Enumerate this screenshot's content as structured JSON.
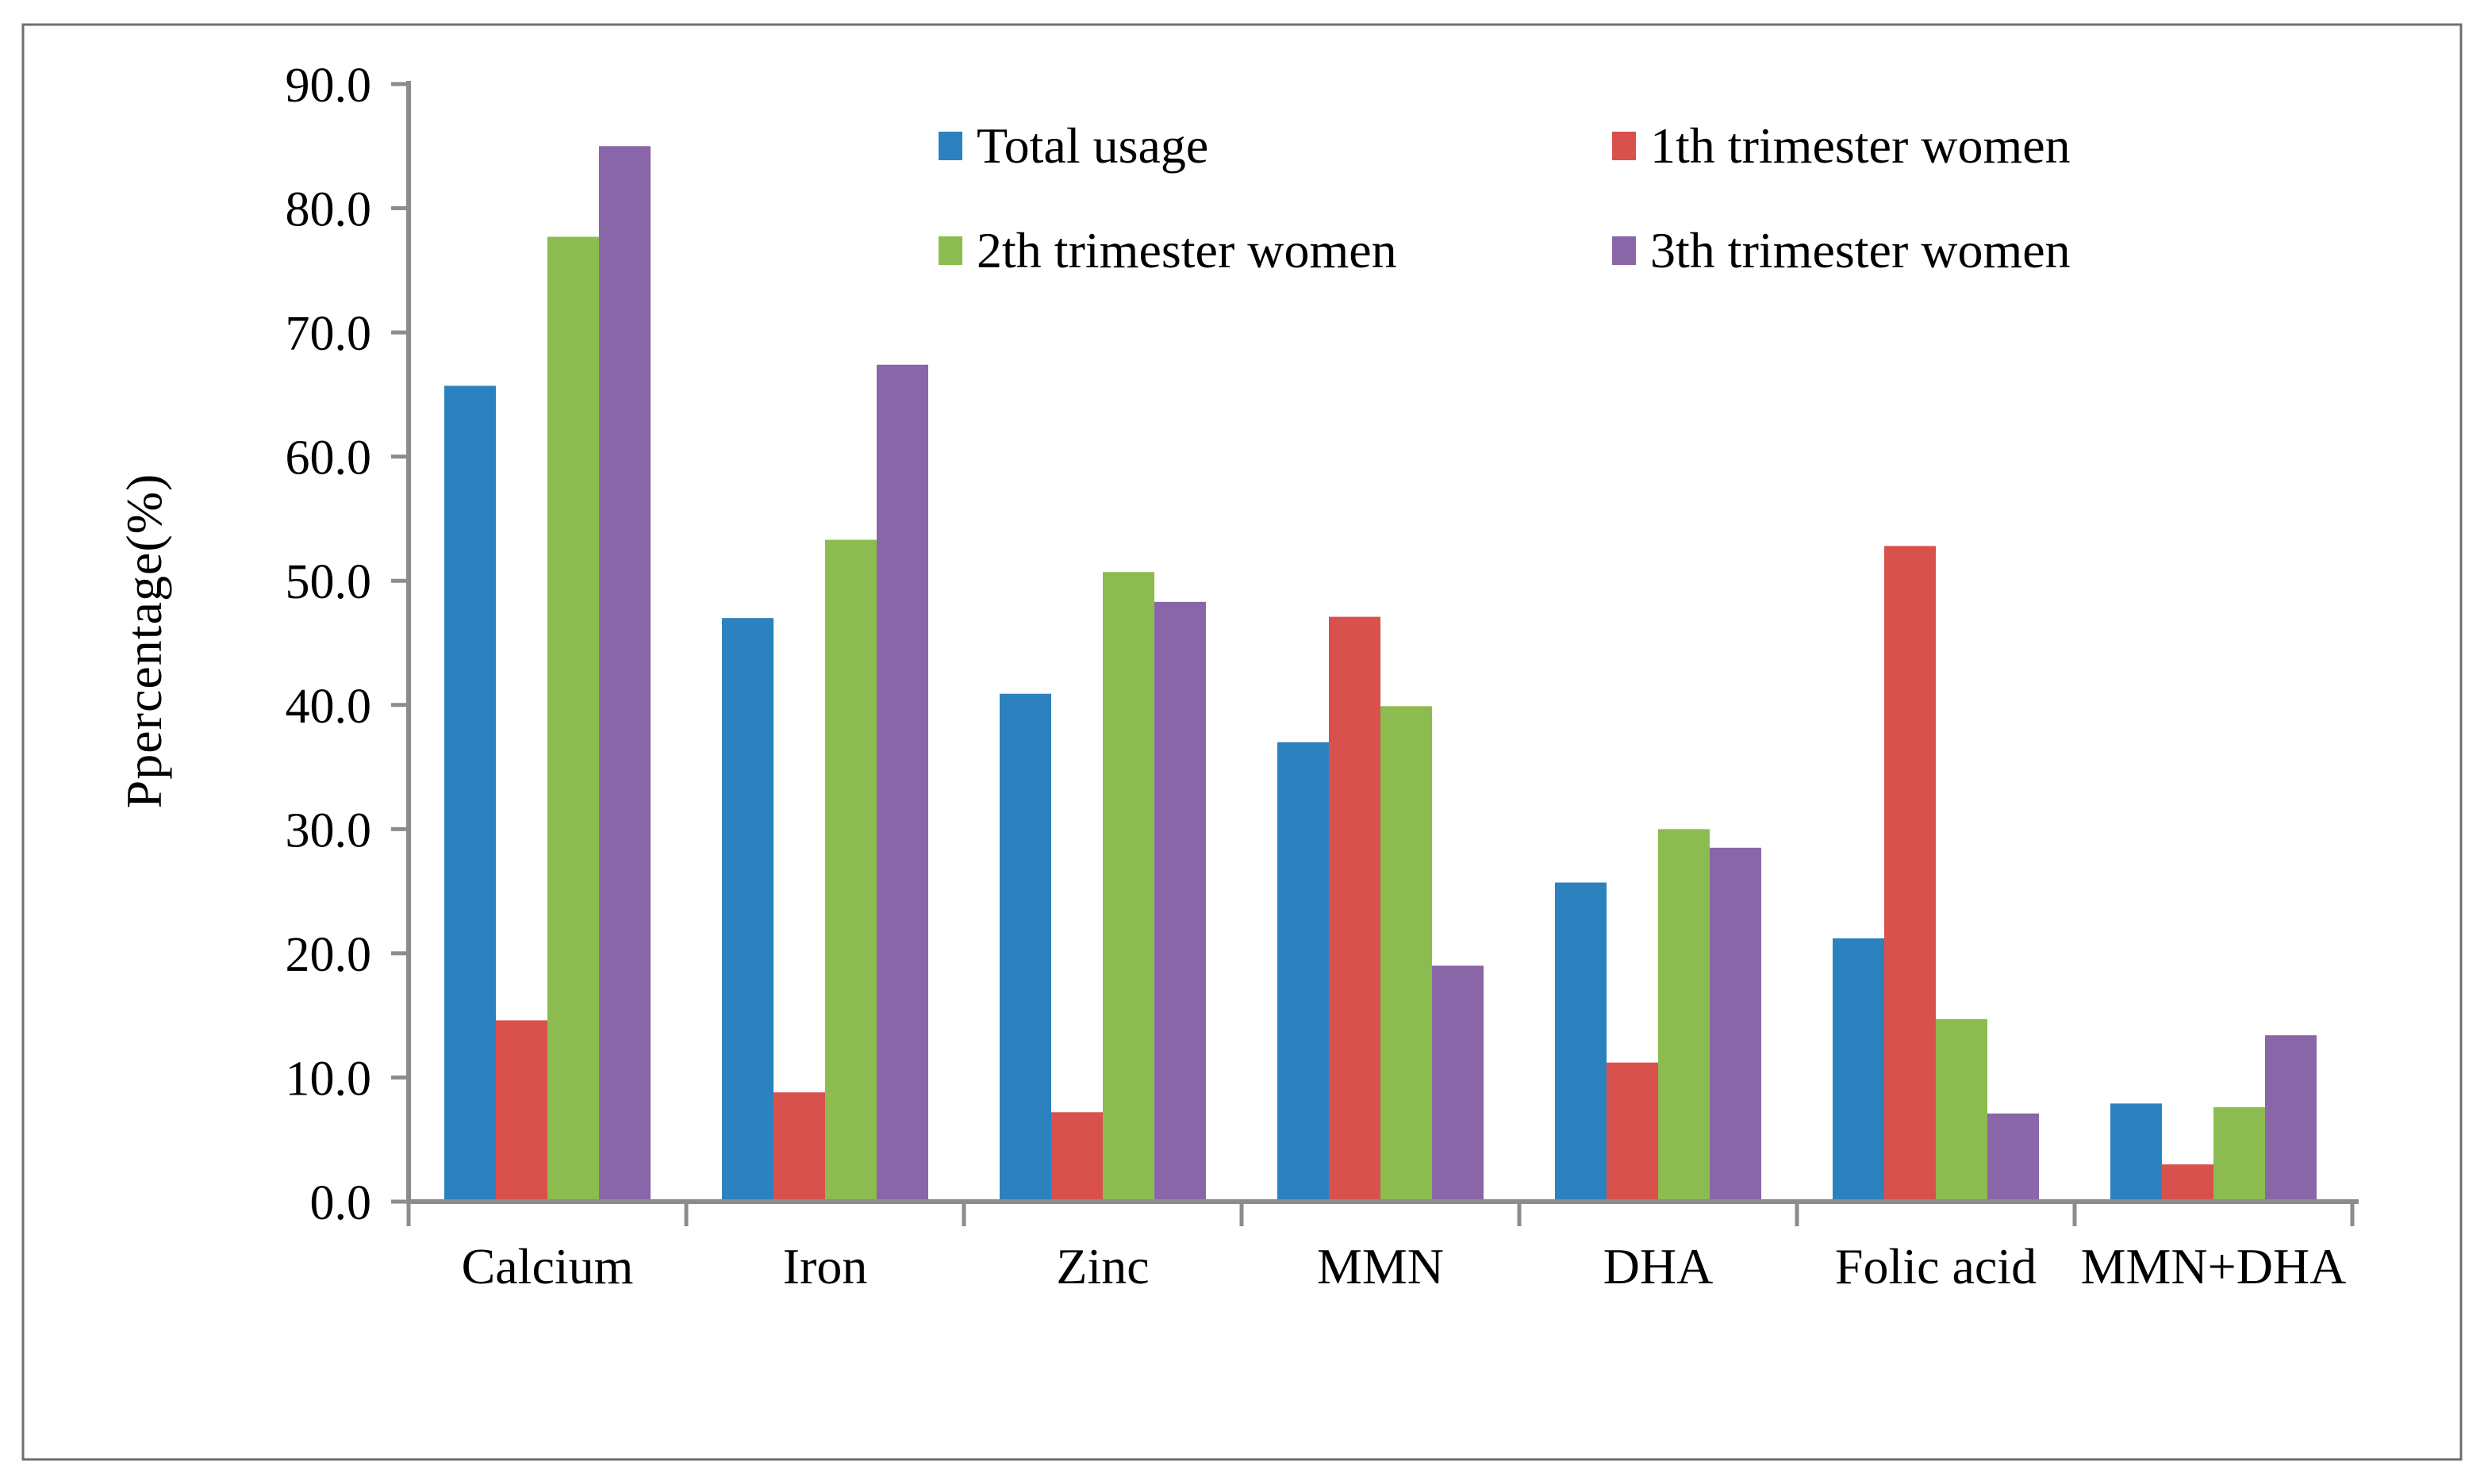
{
  "figure": {
    "background": "#ffffff",
    "border_color": "#6f6f6f"
  },
  "chart_data": {
    "type": "bar",
    "title": "",
    "xlabel": "",
    "ylabel": "Ppercentage(%)",
    "ylim": [
      0,
      90
    ],
    "y_tick_step": 10,
    "y_ticks": [
      "0.0",
      "10.0",
      "20.0",
      "30.0",
      "40.0",
      "50.0",
      "60.0",
      "70.0",
      "80.0",
      "90.0"
    ],
    "grid": "off",
    "legend_position": "top-center-2x2",
    "axis_color": "#8c8c8c",
    "categories": [
      "Calcium",
      "Iron",
      "Zinc",
      "MMN",
      "DHA",
      "Folic acid",
      "MMN+DHA"
    ],
    "series": [
      {
        "name": "Total usage",
        "color": "#2c82be",
        "values": [
          65.7,
          47.0,
          40.9,
          37.0,
          25.7,
          21.2,
          7.9
        ]
      },
      {
        "name": "1th trimester women",
        "color": "#d8514d",
        "values": [
          14.6,
          8.8,
          7.2,
          47.1,
          11.2,
          52.8,
          3.0
        ]
      },
      {
        "name": "2th trimester women",
        "color": "#8cbc4f",
        "values": [
          77.7,
          53.3,
          50.7,
          39.9,
          30.0,
          14.7,
          7.6
        ]
      },
      {
        "name": "3th trimester women",
        "color": "#8966a8",
        "values": [
          85.0,
          67.4,
          48.3,
          19.0,
          28.5,
          7.1,
          13.4
        ]
      }
    ]
  }
}
